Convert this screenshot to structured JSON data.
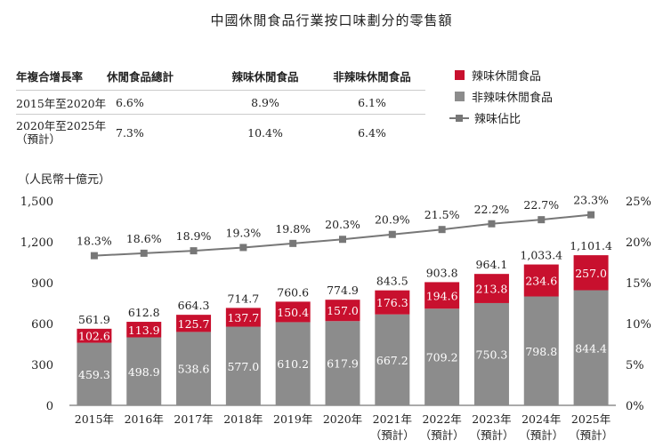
{
  "title": "中國休閒食品行業按口味劃分的零售額",
  "cagr_table": {
    "headers": [
      "年複合增長率",
      "休閒食品總計",
      "辣味休閒食品",
      "非辣味休閒食品"
    ],
    "rows": [
      {
        "period": "2015年至2020年",
        "period_note": "",
        "values": [
          "6.6%",
          "8.9%",
          "6.1%"
        ]
      },
      {
        "period": "2020年至2025年",
        "period_note": "（預計）",
        "values": [
          "7.3%",
          "10.4%",
          "6.4%"
        ]
      }
    ]
  },
  "legend": {
    "spicy": "辣味休閒食品",
    "nonspicy": "非辣味休閒食品",
    "share": "辣味佔比"
  },
  "colors": {
    "spicy": "#c8102e",
    "nonspicy": "#8c8c8c",
    "line": "#777777"
  },
  "unit_label": "（人民幣十億元）",
  "chart_data": {
    "type": "bar",
    "stacked": true,
    "categories": [
      "2015年",
      "2016年",
      "2017年",
      "2018年",
      "2019年",
      "2020年",
      "2021年",
      "2022年",
      "2023年",
      "2024年",
      "2025年"
    ],
    "category_notes": [
      "",
      "",
      "",
      "",
      "",
      "",
      "（預計）",
      "（預計）",
      "（預計）",
      "（預計）",
      "（預計）"
    ],
    "series": [
      {
        "name": "非辣味休閒食品",
        "values": [
          459.3,
          498.9,
          538.6,
          577.0,
          610.2,
          617.9,
          667.2,
          709.2,
          750.3,
          798.8,
          844.4
        ]
      },
      {
        "name": "辣味休閒食品",
        "values": [
          102.6,
          113.9,
          125.7,
          137.7,
          150.4,
          157.0,
          176.3,
          194.6,
          213.8,
          234.6,
          257.0
        ]
      }
    ],
    "totals": [
      "561.9",
      "612.8",
      "664.3",
      "714.7",
      "760.6",
      "774.9",
      "843.5",
      "903.8",
      "964.1",
      "1,033.4",
      "1,101.4"
    ],
    "line_series": {
      "name": "辣味佔比",
      "values": [
        18.3,
        18.6,
        18.9,
        19.3,
        19.8,
        20.3,
        20.9,
        21.5,
        22.2,
        22.7,
        23.3
      ]
    },
    "yaxis_left": {
      "ticks": [
        "0",
        "300",
        "600",
        "900",
        "1,200",
        "1,500"
      ],
      "ylim": [
        0,
        1500
      ]
    },
    "yaxis_right": {
      "ticks": [
        "0%",
        "5%",
        "10%",
        "15%",
        "20%",
        "25%"
      ],
      "ylim": [
        0,
        25
      ]
    },
    "grid": false,
    "legend_position": "top-right"
  }
}
